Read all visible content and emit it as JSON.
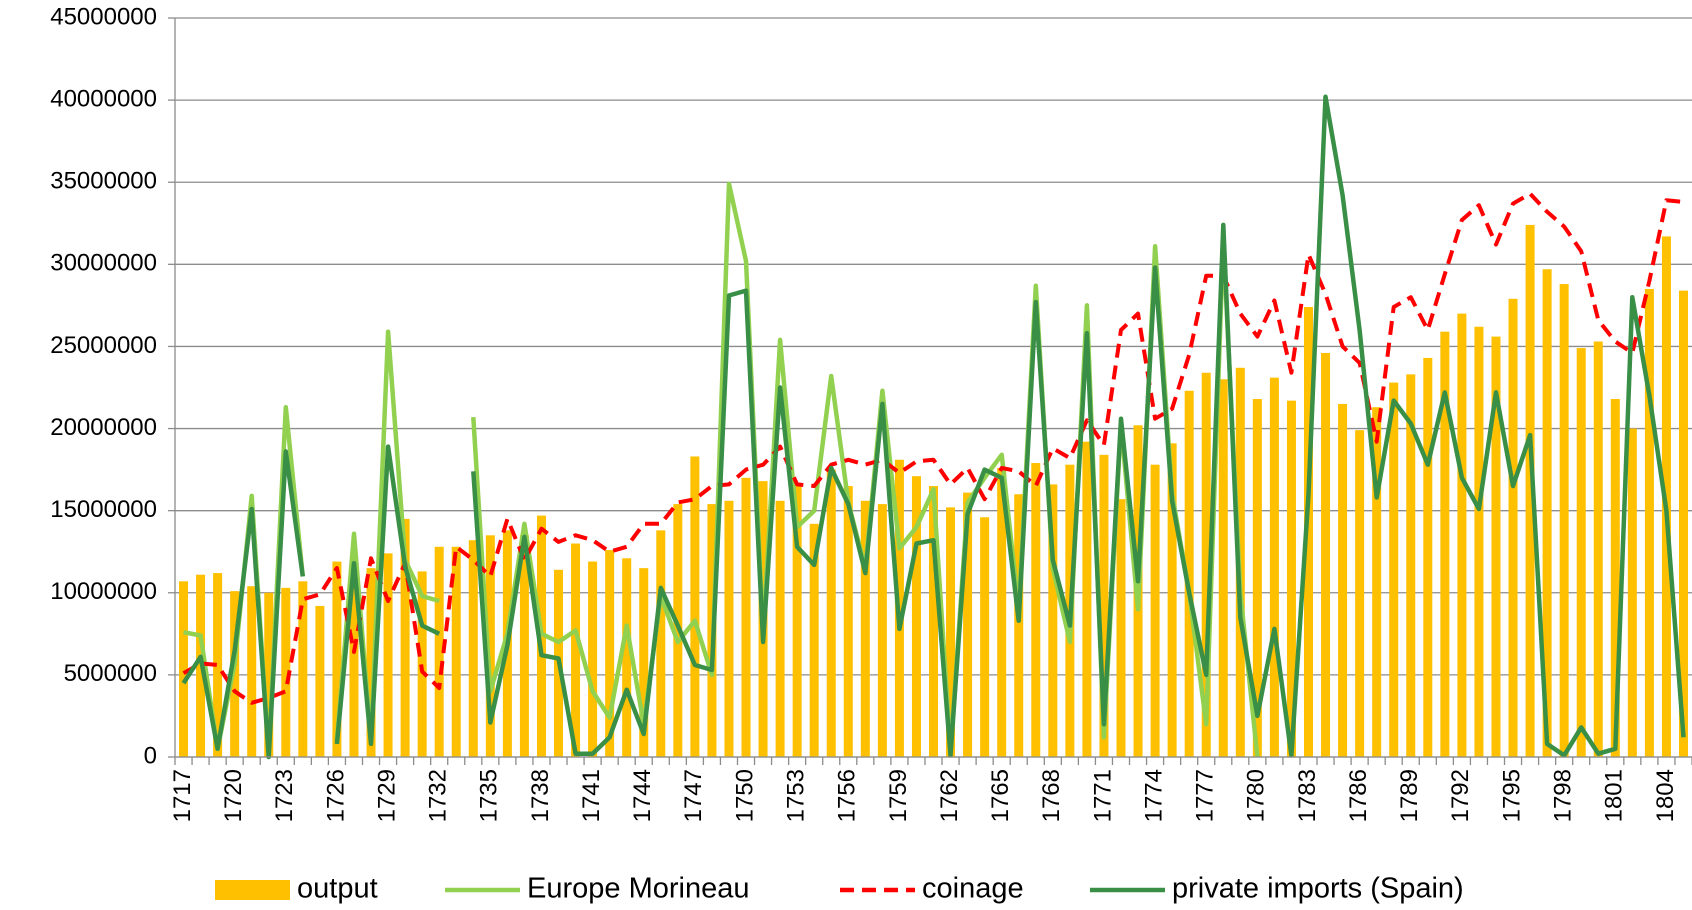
{
  "chart_data": {
    "type": "bar",
    "categories": [
      "1717",
      null,
      null,
      "1720",
      null,
      null,
      "1723",
      null,
      null,
      "1726",
      null,
      null,
      "1729",
      null,
      null,
      "1732",
      null,
      null,
      "1735",
      null,
      null,
      "1738",
      null,
      null,
      "1741",
      null,
      null,
      "1744",
      null,
      null,
      "1747",
      null,
      null,
      "1750",
      null,
      null,
      "1753",
      null,
      null,
      "1756",
      null,
      null,
      "1759",
      null,
      null,
      "1762",
      null,
      null,
      "1765",
      null,
      null,
      "1768",
      null,
      null,
      "1771",
      null,
      null,
      "1774",
      null,
      null,
      "1777",
      null,
      null,
      "1780",
      null,
      null,
      "1783",
      null,
      null,
      "1786",
      null,
      null,
      "1789",
      null,
      null,
      "1792",
      null,
      null,
      "1795",
      null,
      null,
      "1798",
      null,
      null,
      "1801",
      null,
      null,
      "1804",
      null
    ],
    "ylim": [
      0,
      45000000
    ],
    "yticks": [
      0,
      5000000,
      10000000,
      15000000,
      20000000,
      25000000,
      30000000,
      35000000,
      40000000,
      45000000
    ],
    "grid": true,
    "legend": "bottom",
    "series": [
      {
        "name": "output",
        "type": "bar",
        "color": "#ffc000",
        "values": [
          10700000,
          11100000,
          11200000,
          10100000,
          10400000,
          10000000,
          10300000,
          10700000,
          9200000,
          11900000,
          11000000,
          11500000,
          12400000,
          14500000,
          11300000,
          12800000,
          12800000,
          13200000,
          13500000,
          13800000,
          13500000,
          14700000,
          11400000,
          13000000,
          11900000,
          12600000,
          12100000,
          11500000,
          13800000,
          15400000,
          18300000,
          15400000,
          15600000,
          17000000,
          16800000,
          15600000,
          16600000,
          14200000,
          17500000,
          16500000,
          15600000,
          15400000,
          18100000,
          17100000,
          16500000,
          15200000,
          16100000,
          14600000,
          17600000,
          16000000,
          17900000,
          16600000,
          17800000,
          19200000,
          18400000,
          15700000,
          20200000,
          17800000,
          19100000,
          22300000,
          23400000,
          23000000,
          23700000,
          21800000,
          23100000,
          21700000,
          27400000,
          24600000,
          21500000,
          19900000,
          21300000,
          22800000,
          23300000,
          24300000,
          25900000,
          27000000,
          26200000,
          25600000,
          27900000,
          32400000,
          29700000,
          28800000,
          24900000,
          25300000,
          21800000,
          20000000,
          28500000,
          31700000,
          28400000
        ]
      },
      {
        "name": "Europe Morineau",
        "type": "line",
        "color": "#92d050",
        "values": [
          7600000,
          7400000,
          500000,
          5700000,
          15900000,
          200000,
          21300000,
          11000000,
          null,
          1000000,
          13600000,
          1000000,
          25900000,
          12000000,
          9800000,
          9500000,
          null,
          20700000,
          4000000,
          7500000,
          14200000,
          7500000,
          7000000,
          7700000,
          4000000,
          2400000,
          8000000,
          2000000,
          9800000,
          7000000,
          8300000,
          5000000,
          34900000,
          30200000,
          7500000,
          25400000,
          14000000,
          15000000,
          23200000,
          15500000,
          11500000,
          22300000,
          12700000,
          14000000,
          16300000,
          300000,
          15500000,
          17000000,
          18400000,
          9000000,
          28700000,
          11500000,
          7000000,
          27500000,
          1200000,
          20300000,
          9000000,
          31100000,
          16000000,
          10000000,
          2000000,
          31500000,
          10000000,
          0,
          null,
          null,
          null,
          null,
          null,
          null,
          null,
          null,
          null,
          null,
          null,
          null,
          null,
          null,
          null,
          null,
          null,
          null,
          null,
          null,
          null,
          null,
          null,
          null,
          null
        ]
      },
      {
        "name": "coinage",
        "type": "line",
        "line_style": "dashed",
        "color": "#ff0000",
        "values": [
          5100000,
          5700000,
          5600000,
          4000000,
          3300000,
          3600000,
          4000000,
          9600000,
          9900000,
          11500000,
          6400000,
          12100000,
          9500000,
          11800000,
          5200000,
          4200000,
          12800000,
          12000000,
          11000000,
          14500000,
          12000000,
          13900000,
          13100000,
          13500000,
          13200000,
          12500000,
          12800000,
          14200000,
          14200000,
          15500000,
          15700000,
          16500000,
          16600000,
          17500000,
          17800000,
          18900000,
          16600000,
          16500000,
          17800000,
          18100000,
          17800000,
          18100000,
          17300000,
          18000000,
          18100000,
          16600000,
          17600000,
          15700000,
          17600000,
          17400000,
          16500000,
          18800000,
          18200000,
          20500000,
          19000000,
          26000000,
          27000000,
          20600000,
          21200000,
          24500000,
          29300000,
          29300000,
          27000000,
          25600000,
          27800000,
          23400000,
          30600000,
          28200000,
          25000000,
          24000000,
          19200000,
          27400000,
          28000000,
          26000000,
          29400000,
          32700000,
          33600000,
          31200000,
          33700000,
          34300000,
          33200000,
          32300000,
          30800000,
          26600000,
          25300000,
          24600000,
          29000000,
          33900000,
          33800000
        ]
      },
      {
        "name": "private imports (Spain)",
        "type": "line",
        "color": "#3a8f47",
        "values": [
          4500000,
          6100000,
          500000,
          6500000,
          15100000,
          0,
          18600000,
          11000000,
          null,
          800000,
          11800000,
          800000,
          18900000,
          11600000,
          8000000,
          7500000,
          null,
          17400000,
          2100000,
          6800000,
          13400000,
          6200000,
          6000000,
          200000,
          200000,
          1200000,
          4100000,
          1400000,
          10300000,
          8000000,
          5600000,
          5300000,
          28100000,
          28400000,
          7000000,
          22500000,
          12800000,
          11700000,
          17600000,
          15400000,
          11200000,
          21500000,
          7800000,
          13000000,
          13200000,
          100000,
          14800000,
          17500000,
          17000000,
          8300000,
          27700000,
          12000000,
          8000000,
          25800000,
          2000000,
          20600000,
          10700000,
          29800000,
          15600000,
          10000000,
          5000000,
          32400000,
          8500000,
          2500000,
          7800000,
          100000,
          16000000,
          40200000,
          34200000,
          26000000,
          15800000,
          21700000,
          20300000,
          17800000,
          22200000,
          17000000,
          15100000,
          22200000,
          16500000,
          19600000,
          800000,
          100000,
          1800000,
          200000,
          500000,
          28000000,
          22000000,
          15000000,
          1200000
        ]
      }
    ]
  }
}
